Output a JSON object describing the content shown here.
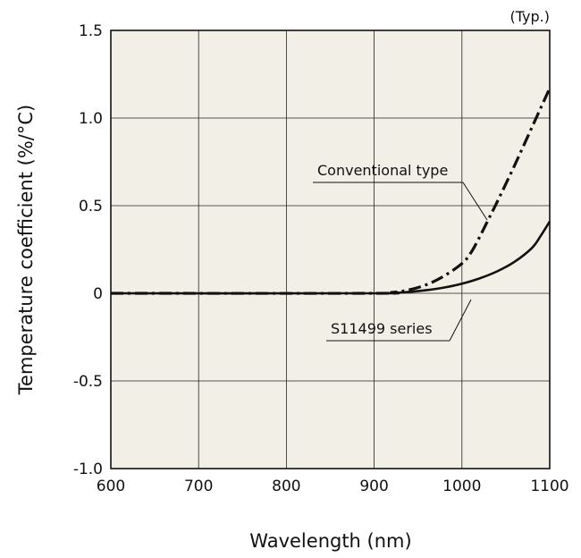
{
  "chart_data": {
    "type": "line",
    "title": "",
    "note": "(Typ.)",
    "xlabel": "Wavelength (nm)",
    "ylabel": "Temperature coefficient (%/°C)",
    "xlim": [
      600,
      1100
    ],
    "ylim": [
      -1.0,
      1.5
    ],
    "x_ticks": [
      600,
      700,
      800,
      900,
      1000,
      1100
    ],
    "x_tick_labels": [
      "600",
      "700",
      "800",
      "900",
      "1000",
      "1100"
    ],
    "y_ticks": [
      -1.0,
      -0.5,
      0,
      0.5,
      1.0,
      1.5
    ],
    "y_tick_labels": [
      "-1.0",
      "-0.5",
      "0",
      "0.5",
      "1.0",
      "1.5"
    ],
    "grid": true,
    "plot_background": "#f1efe6",
    "series": [
      {
        "name": "Conventional type",
        "style": "dash-dot",
        "color": "#111111",
        "x": [
          600,
          900,
          920,
          940,
          960,
          980,
          1000,
          1010,
          1020,
          1030,
          1040,
          1060,
          1080,
          1100
        ],
        "y": [
          0,
          0,
          0.005,
          0.02,
          0.05,
          0.1,
          0.17,
          0.23,
          0.32,
          0.42,
          0.52,
          0.73,
          0.95,
          1.17
        ]
      },
      {
        "name": "S11499 series",
        "style": "solid",
        "color": "#111111",
        "x": [
          600,
          900,
          920,
          940,
          960,
          980,
          1000,
          1020,
          1040,
          1060,
          1080,
          1090,
          1100
        ],
        "y": [
          0,
          0,
          0.002,
          0.008,
          0.018,
          0.033,
          0.055,
          0.085,
          0.125,
          0.18,
          0.26,
          0.33,
          0.41
        ]
      }
    ],
    "annotations": [
      {
        "text": "Conventional type",
        "series": 0
      },
      {
        "text": "S11499 series",
        "series": 1
      }
    ]
  }
}
